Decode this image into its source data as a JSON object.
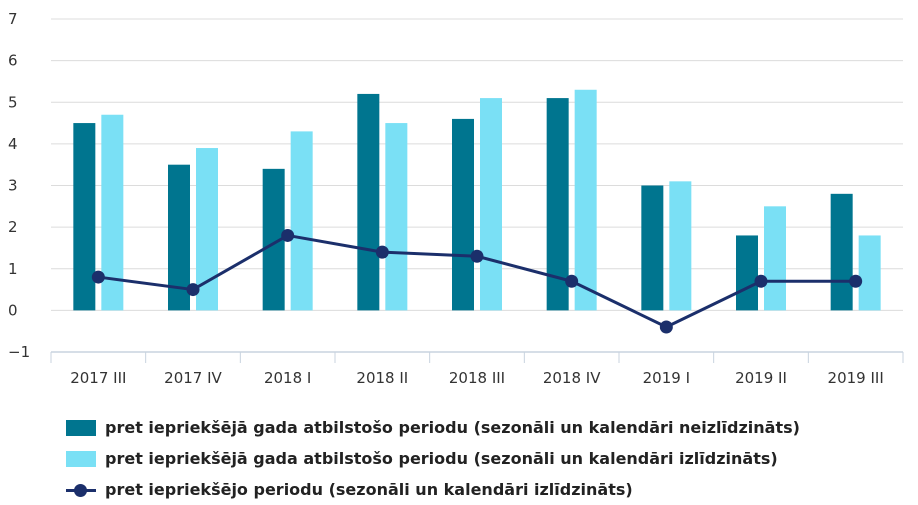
{
  "chart_data": {
    "type": "bar",
    "categories": [
      "2017 III",
      "2017 IV",
      "2018 I",
      "2018 II",
      "2018 III",
      "2018 IV",
      "2019 I",
      "2019 II",
      "2019 III"
    ],
    "series": [
      {
        "name": "pret iepriekšējā gada atbilstošo periodu (sezonāli un kalendāri neizlīdzināts)",
        "kind": "bar",
        "color": "#00758f",
        "values": [
          4.5,
          3.5,
          3.4,
          5.2,
          4.6,
          5.1,
          3.0,
          1.8,
          2.8
        ]
      },
      {
        "name": "pret iepriekšējā gada atbilstošo periodu (sezonāli un kalendāri izlīdzināts)",
        "kind": "bar",
        "color": "#7ae0f5",
        "values": [
          4.7,
          3.9,
          4.3,
          4.5,
          5.1,
          5.3,
          3.1,
          2.5,
          1.8
        ]
      },
      {
        "name": "pret iepriekšējo periodu (sezonāli un kalendāri izlīdzināts)",
        "kind": "line",
        "color": "#1b2f6b",
        "values": [
          0.8,
          0.5,
          1.8,
          1.4,
          1.3,
          0.7,
          -0.4,
          0.7,
          0.7
        ]
      }
    ],
    "y_ticks": [
      "−1",
      "0",
      "1",
      "2",
      "3",
      "4",
      "5",
      "6",
      "7"
    ],
    "ylim": [
      -1,
      7
    ],
    "grid": true,
    "legend_position": "bottom"
  }
}
